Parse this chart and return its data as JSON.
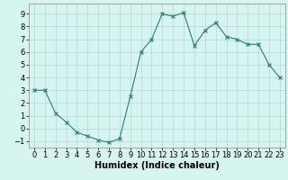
{
  "x": [
    0,
    1,
    2,
    3,
    4,
    5,
    6,
    7,
    8,
    9,
    10,
    11,
    12,
    13,
    14,
    15,
    16,
    17,
    18,
    19,
    20,
    21,
    22,
    23
  ],
  "y": [
    3,
    3,
    1.2,
    0.5,
    -0.3,
    -0.6,
    -0.9,
    -1.1,
    -0.8,
    2.5,
    6,
    7,
    9,
    8.8,
    9.1,
    6.5,
    7.7,
    8.3,
    7.2,
    7.0,
    6.6,
    6.6,
    5.0,
    4.0
  ],
  "xlabel": "Humidex (Indice chaleur)",
  "line_color": "#2e7d6e",
  "marker": "x",
  "marker_size": 3,
  "bg_color": "#d6f5f0",
  "grid_color": "#b0d8d2",
  "xlim": [
    -0.5,
    23.5
  ],
  "ylim": [
    -1.5,
    9.8
  ],
  "yticks": [
    -1,
    0,
    1,
    2,
    3,
    4,
    5,
    6,
    7,
    8,
    9
  ],
  "xticks": [
    0,
    1,
    2,
    3,
    4,
    5,
    6,
    7,
    8,
    9,
    10,
    11,
    12,
    13,
    14,
    15,
    16,
    17,
    18,
    19,
    20,
    21,
    22,
    23
  ],
  "xlabel_fontsize": 7,
  "tick_fontsize": 6
}
